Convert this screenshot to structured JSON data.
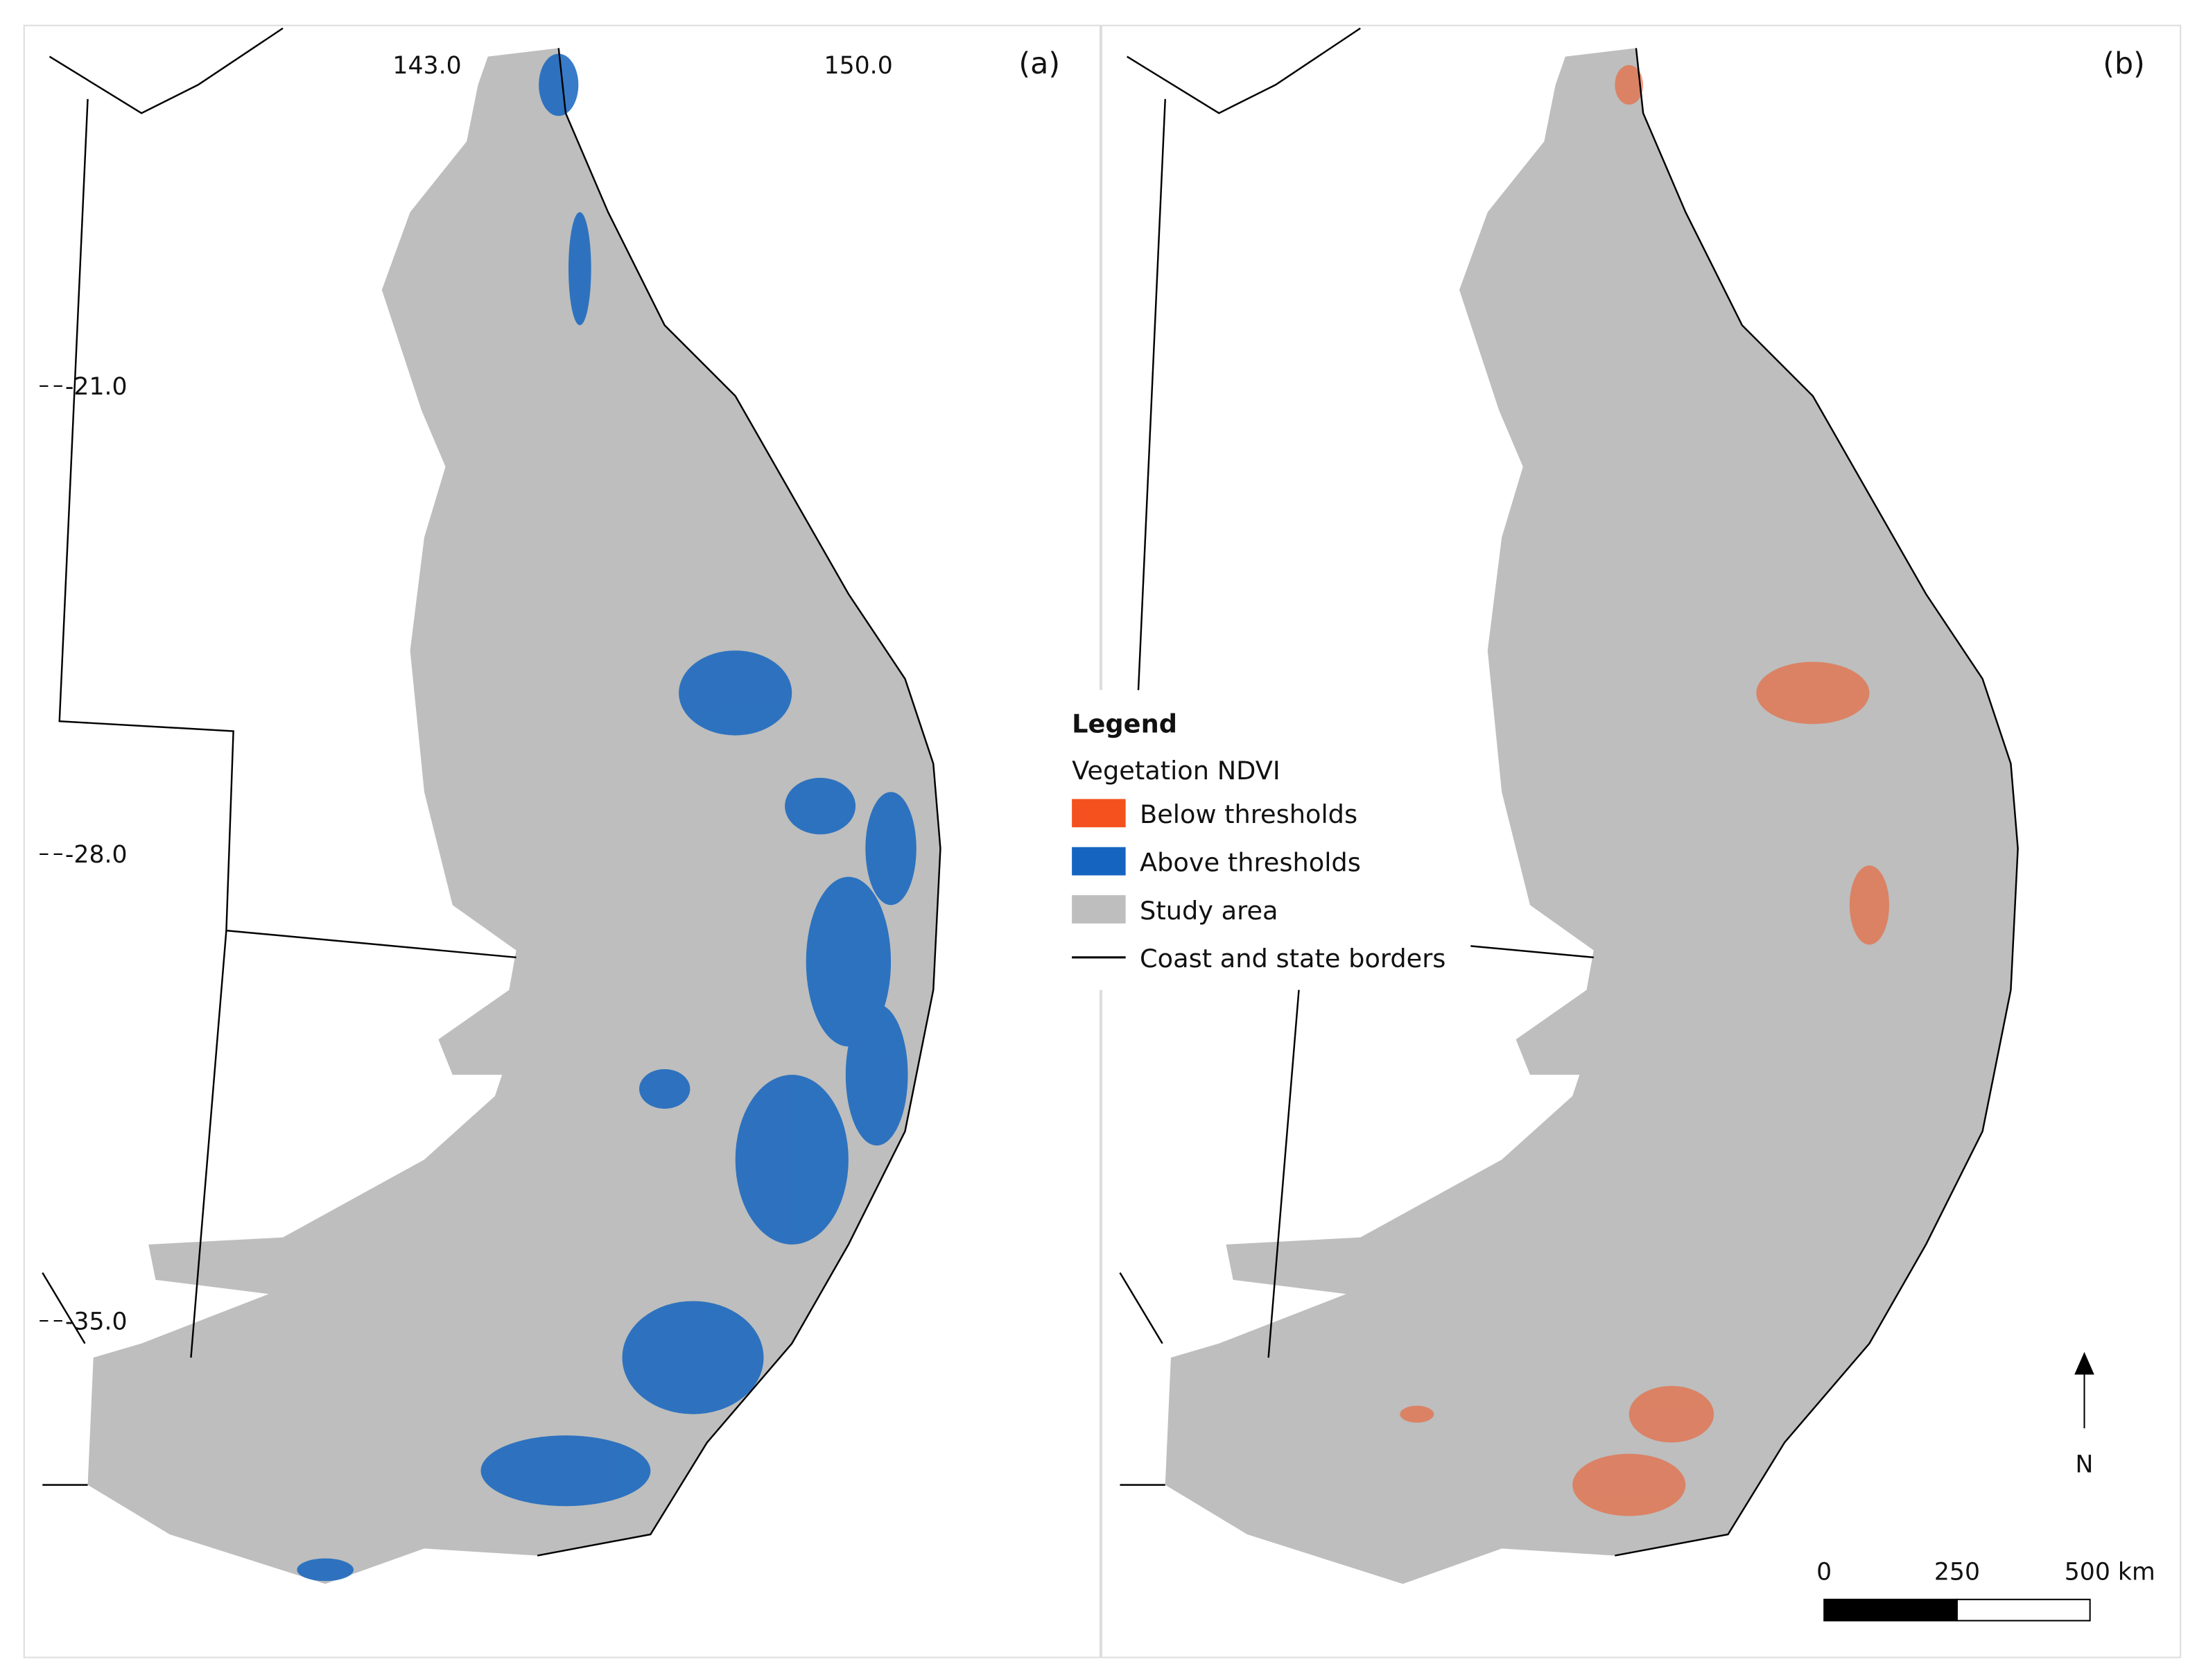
{
  "panels": [
    {
      "label": "(a)"
    },
    {
      "label": "(b)"
    }
  ],
  "longitude_labels": [
    "143.0",
    "150.0"
  ],
  "latitude_labels": [
    "-21.0",
    "-28.0",
    "-35.0"
  ],
  "legend": {
    "title": "Legend",
    "subtitle": "Vegetation NDVI",
    "items": [
      {
        "label": "Below thresholds",
        "color": "#f4511e"
      },
      {
        "label": "Above thresholds",
        "color": "#1565c0"
      },
      {
        "label": "Study area",
        "color": "#bdbebd"
      },
      {
        "label": "Coast and state borders",
        "color": "#000000"
      }
    ]
  },
  "scale_bar": {
    "labels": [
      "0",
      "250",
      "500 km"
    ]
  },
  "north_arrow": {
    "label": "N"
  }
}
